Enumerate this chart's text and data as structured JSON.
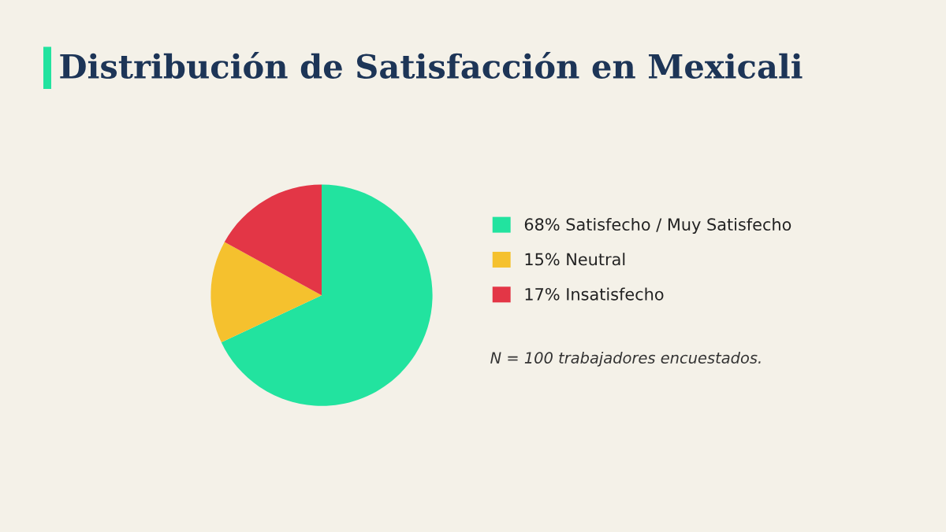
{
  "chart_data": {
    "type": "pie",
    "title": "Distribución de Satisfacción en Mexicali",
    "categories": [
      "68% Satisfecho / Muy Satisfecho",
      "15% Neutral",
      "17% Insatisfecho"
    ],
    "values": [
      68,
      15,
      17
    ],
    "colors": [
      "#22e39f",
      "#f5c12e",
      "#e33646"
    ],
    "legend": "right",
    "annotations": [
      "N = 100 trabajadores encuestados."
    ]
  }
}
